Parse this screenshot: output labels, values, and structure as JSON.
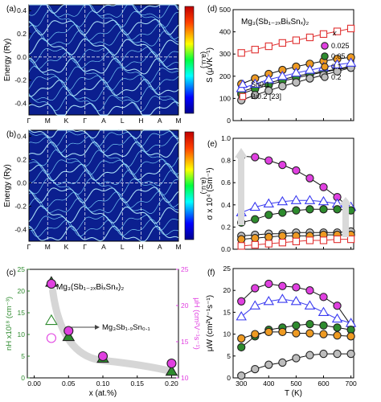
{
  "figure": {
    "panel_labels": [
      "(a)",
      "(b)",
      "(c)",
      "(d)",
      "(e)",
      "(f)"
    ],
    "colorbar_unit": "(a.u.)",
    "compound_label": "Mg₃(Sb₁₋₂ₓBiₓSnₓ)₂",
    "annotation_c": "Mg₃Sb₁.₉Sn₀.₁",
    "colors": {
      "green": "#2e8b2e",
      "magenta": "#e040e0",
      "orange": "#ee9a22",
      "gray": "#bdbdbd",
      "blue": "#3a3af0",
      "red": "#e03030",
      "band_bg": "#0b1f8f",
      "band_line": "#7fd8ff"
    }
  },
  "chart_data": [
    {
      "id": "a",
      "type": "heatmap",
      "title": "",
      "ylabel": "Energy (Ry)",
      "ylim": [
        -0.5,
        0.45
      ],
      "yticks": [
        -0.4,
        -0.2,
        0.0,
        0.2,
        0.4
      ],
      "kpoints": [
        "Γ",
        "M",
        "K",
        "Γ",
        "A",
        "L",
        "H",
        "A",
        "M"
      ],
      "colorbar_label": "(a.u.)"
    },
    {
      "id": "b",
      "type": "heatmap",
      "title": "",
      "ylabel": "Energy (Ry)",
      "ylim": [
        -0.5,
        0.45
      ],
      "yticks": [
        -0.4,
        -0.2,
        0.0,
        0.2,
        0.4
      ],
      "kpoints": [
        "Γ",
        "M",
        "K",
        "Γ",
        "A",
        "L",
        "H",
        "A",
        "M"
      ],
      "colorbar_label": "(a.u.)"
    },
    {
      "id": "c",
      "type": "scatter",
      "xlabel": "x (at.%)",
      "ylabel": "nH x10¹⁸ (cm⁻³)",
      "y2label": "μH (cm²V⁻¹s⁻¹)",
      "xlim": [
        -0.01,
        0.21
      ],
      "xticks": [
        "0.00",
        "0.05",
        "0.10",
        "0.15",
        "0.20"
      ],
      "ylim": [
        0,
        25
      ],
      "yticks": [
        0,
        5,
        10,
        15,
        20,
        25
      ],
      "y2lim": [
        10,
        25
      ],
      "y2ticks": [
        10,
        15,
        20,
        25
      ],
      "series": [
        {
          "marker": "triangle",
          "color": "#2e8b2e",
          "x": [
            0.025,
            0.05,
            0.1,
            0.2
          ],
          "y": [
            22,
            9.5,
            4.5,
            1.5
          ]
        },
        {
          "marker": "circle",
          "color": "#e040e0",
          "axis": "right",
          "x": [
            0.025,
            0.05,
            0.1,
            0.2
          ],
          "y": [
            23,
            16.5,
            13,
            12
          ]
        },
        {
          "marker": "triangle-open",
          "color": "#2e8b2e",
          "x": [
            0.025
          ],
          "y": [
            13.2
          ]
        },
        {
          "marker": "circle-open",
          "color": "#e040e0",
          "axis": "right",
          "x": [
            0.025
          ],
          "y": [
            15.5
          ]
        }
      ]
    },
    {
      "id": "d",
      "type": "line",
      "xlabel": "",
      "ylabel": "S (μVK⁻¹)",
      "xlim": [
        270,
        710
      ],
      "ylim": [
        0,
        500
      ],
      "yticks": [
        0,
        100,
        200,
        300,
        400,
        500
      ],
      "legend_title": "x",
      "legend": [
        "Sn0.1",
        "Bi0.2 [23]",
        "0.025",
        "0.05",
        "0.1",
        "0.2"
      ],
      "x": [
        300,
        350,
        400,
        450,
        500,
        550,
        600,
        650,
        700
      ],
      "series": [
        {
          "name": "0.025",
          "marker": "circle",
          "color": "#e040e0",
          "values": [
            130,
            150,
            170,
            185,
            200,
            212,
            222,
            232,
            245
          ]
        },
        {
          "name": "0.05",
          "marker": "circle",
          "color": "#2e8b2e",
          "values": [
            120,
            142,
            160,
            178,
            192,
            206,
            218,
            230,
            240
          ]
        },
        {
          "name": "0.1",
          "marker": "circle",
          "color": "#ee9a22",
          "values": [
            165,
            190,
            210,
            228,
            243,
            256,
            268,
            278,
            285
          ]
        },
        {
          "name": "0.2",
          "marker": "circle",
          "color": "#bdbdbd",
          "values": [
            92,
            115,
            135,
            155,
            172,
            190,
            205,
            222,
            238
          ]
        },
        {
          "name": "Sn0.1",
          "marker": "triangle-open",
          "color": "#3a3af0",
          "values": [
            145,
            165,
            185,
            200,
            215,
            228,
            240,
            252,
            260
          ]
        },
        {
          "name": "Bi0.2 [23]",
          "marker": "square-open",
          "color": "#e03030",
          "values": [
            305,
            320,
            335,
            350,
            362,
            375,
            390,
            402,
            415
          ]
        }
      ]
    },
    {
      "id": "e",
      "type": "line",
      "xlabel": "",
      "ylabel": "σ x 10⁴ (Sm⁻¹)",
      "xlim": [
        270,
        710
      ],
      "ylim": [
        0,
        1.0
      ],
      "yticks": [
        0.0,
        0.2,
        0.4,
        0.6,
        0.8,
        1.0
      ],
      "x": [
        300,
        350,
        400,
        450,
        500,
        550,
        600,
        650,
        700
      ],
      "series": [
        {
          "name": "0.025",
          "marker": "circle",
          "color": "#e040e0",
          "values": [
            0.84,
            0.83,
            0.8,
            0.76,
            0.71,
            0.64,
            0.56,
            0.47,
            0.36
          ]
        },
        {
          "name": "Sn0.1",
          "marker": "triangle-open",
          "color": "#3a3af0",
          "values": [
            0.33,
            0.38,
            0.41,
            0.43,
            0.44,
            0.44,
            0.43,
            0.41,
            0.38
          ]
        },
        {
          "name": "0.05",
          "marker": "circle",
          "color": "#2e8b2e",
          "values": [
            0.24,
            0.27,
            0.31,
            0.33,
            0.35,
            0.36,
            0.36,
            0.36,
            0.35
          ]
        },
        {
          "name": "0.2",
          "marker": "circle",
          "color": "#bdbdbd",
          "values": [
            0.12,
            0.13,
            0.14,
            0.14,
            0.15,
            0.15,
            0.15,
            0.15,
            0.16
          ]
        },
        {
          "name": "0.1",
          "marker": "circle",
          "color": "#ee9a22",
          "values": [
            0.09,
            0.1,
            0.11,
            0.12,
            0.12,
            0.12,
            0.13,
            0.13,
            0.13
          ]
        },
        {
          "name": "Bi0.2 [23]",
          "marker": "square-open",
          "color": "#e03030",
          "values": [
            0.03,
            0.04,
            0.05,
            0.06,
            0.07,
            0.08,
            0.08,
            0.09,
            0.09
          ]
        }
      ]
    },
    {
      "id": "f",
      "type": "line",
      "xlabel": "T (K)",
      "ylabel": "μW (cm²V⁻¹s⁻¹)",
      "xlim": [
        270,
        710
      ],
      "xticks": [
        300,
        400,
        500,
        600,
        700
      ],
      "ylim": [
        0,
        25
      ],
      "yticks": [
        0,
        5,
        10,
        15,
        20,
        25
      ],
      "x": [
        300,
        350,
        400,
        450,
        500,
        550,
        600,
        650,
        700
      ],
      "series": [
        {
          "name": "0.025",
          "marker": "circle",
          "color": "#e040e0",
          "values": [
            17.5,
            20.5,
            21.5,
            21,
            20.7,
            20,
            18.5,
            16.5,
            12
          ]
        },
        {
          "name": "Sn0.1",
          "marker": "triangle-open",
          "color": "#3a3af0",
          "values": [
            14,
            16.5,
            17.5,
            18,
            17.5,
            16.5,
            15,
            13.5,
            12.5
          ]
        },
        {
          "name": "0.05",
          "marker": "circle",
          "color": "#2e8b2e",
          "values": [
            7,
            9.5,
            11,
            11.5,
            12,
            12.3,
            12,
            11.5,
            11
          ]
        },
        {
          "name": "0.1",
          "marker": "circle",
          "color": "#ee9a22",
          "values": [
            9,
            10,
            10.5,
            10.5,
            10.2,
            10.2,
            10,
            9.7,
            9.5
          ]
        },
        {
          "name": "0.2",
          "marker": "circle",
          "color": "#bdbdbd",
          "values": [
            0.5,
            2,
            3,
            3.5,
            4.5,
            5.2,
            5.5,
            5.5,
            5.5
          ]
        }
      ]
    }
  ]
}
